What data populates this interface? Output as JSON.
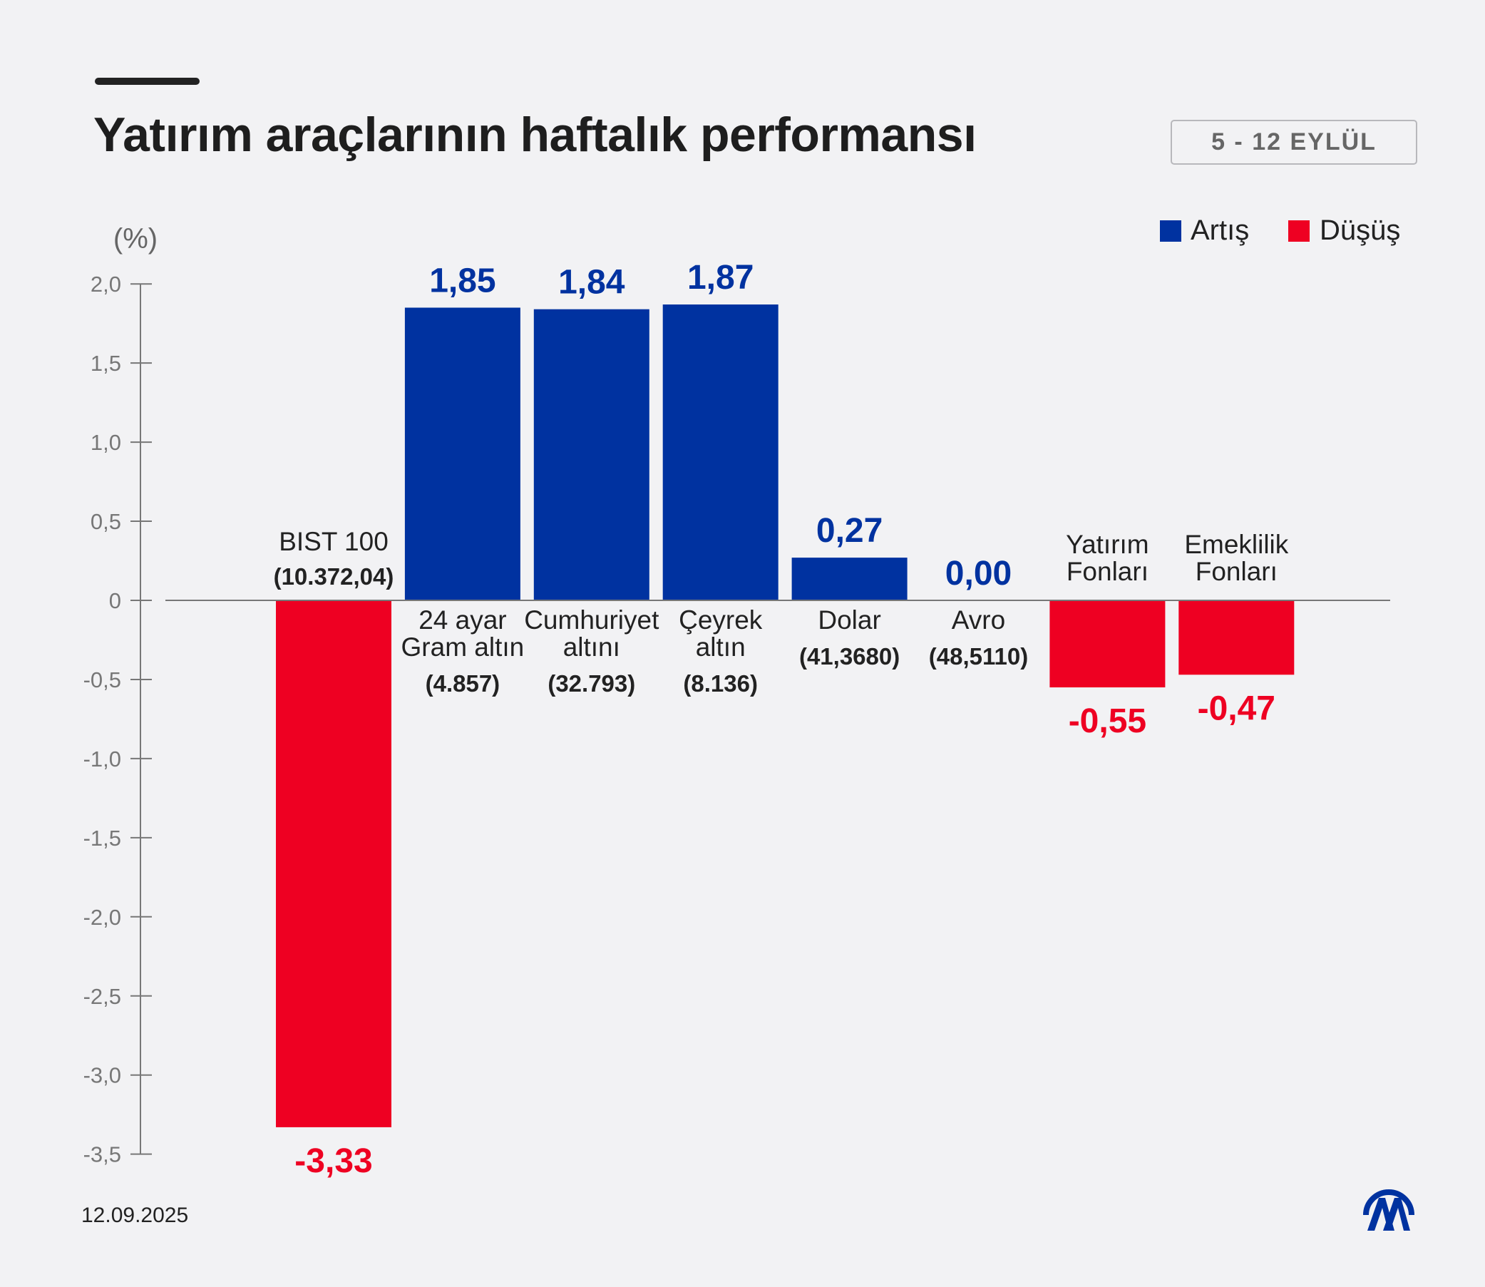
{
  "title": "Yatırım araçlarının haftalık performansı",
  "date_range": "5 - 12 EYLÜL",
  "footer_date": "12.09.2025",
  "logo_text": "AA",
  "colors": {
    "increase": "#0032a0",
    "decrease": "#ee0022",
    "background": "#f2f2f4"
  },
  "chart_data": {
    "type": "bar",
    "title": "Yatırım araçlarının haftalık performansı",
    "ylabel": "(%)",
    "ylim": [
      -3.5,
      2.0
    ],
    "yticks": [
      2.0,
      1.5,
      1.0,
      0.5,
      0,
      -0.5,
      -1.0,
      -1.5,
      -2.0,
      -2.5,
      -3.0,
      -3.5
    ],
    "ytick_labels": [
      "2,0",
      "1,5",
      "1,0",
      "0,5",
      "0",
      "-0,5",
      "-1,0",
      "-1,5",
      "-2,0",
      "-2,5",
      "-3,0",
      "-3,5"
    ],
    "legend": {
      "position": "top-right",
      "items": [
        {
          "label": "Artış",
          "color": "#0032a0"
        },
        {
          "label": "Düşüş",
          "color": "#ee0022"
        }
      ]
    },
    "grid": false,
    "categories": [
      {
        "lines": [
          "BIST 100"
        ],
        "sub": "(10.372,04)"
      },
      {
        "lines": [
          "24 ayar",
          "Gram altın"
        ],
        "sub": "(4.857)"
      },
      {
        "lines": [
          "Cumhuriyet",
          "altını"
        ],
        "sub": "(32.793)"
      },
      {
        "lines": [
          "Çeyrek",
          "altın"
        ],
        "sub": "(8.136)"
      },
      {
        "lines": [
          "Dolar"
        ],
        "sub": "(41,3680)"
      },
      {
        "lines": [
          "Avro"
        ],
        "sub": "(48,5110)"
      },
      {
        "lines": [
          "Yatırım",
          "Fonları"
        ],
        "sub": ""
      },
      {
        "lines": [
          "Emeklilik",
          "Fonları"
        ],
        "sub": ""
      }
    ],
    "values": [
      -3.33,
      1.85,
      1.84,
      1.87,
      0.27,
      0.0,
      -0.55,
      -0.47
    ],
    "value_labels": [
      "-3,33",
      "1,85",
      "1,84",
      "1,87",
      "0,27",
      "0,00",
      "-0,55",
      "-0,47"
    ]
  }
}
